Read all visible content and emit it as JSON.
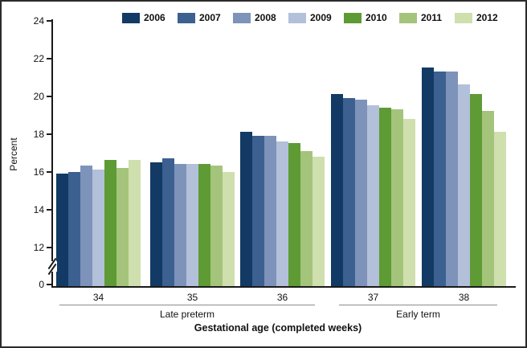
{
  "chart_data": {
    "type": "bar",
    "title": "",
    "ylabel": "Percent",
    "xlabel": "Gestational age (completed weeks)",
    "categories": [
      "34",
      "35",
      "36",
      "37",
      "38"
    ],
    "category_groups": [
      {
        "label": "Late preterm",
        "covers": [
          "34",
          "35",
          "36"
        ]
      },
      {
        "label": "Early term",
        "covers": [
          "37",
          "38"
        ]
      }
    ],
    "yticks": [
      "24",
      "22",
      "20",
      "18",
      "16",
      "14",
      "12",
      "0"
    ],
    "axis_break_between": [
      "0",
      "12"
    ],
    "ylim_display": [
      12,
      24
    ],
    "grid": false,
    "legend_position": "top",
    "series": [
      {
        "name": "2006",
        "color": "#123a64",
        "values": [
          15.9,
          16.5,
          18.1,
          20.1,
          21.5
        ]
      },
      {
        "name": "2007",
        "color": "#3c6090",
        "values": [
          16.0,
          16.7,
          17.9,
          19.9,
          21.3
        ]
      },
      {
        "name": "2008",
        "color": "#7e93ba",
        "values": [
          16.3,
          16.4,
          17.9,
          19.8,
          21.3
        ]
      },
      {
        "name": "2009",
        "color": "#b3c0da",
        "values": [
          16.1,
          16.4,
          17.6,
          19.5,
          20.6
        ]
      },
      {
        "name": "2010",
        "color": "#5e9b34",
        "values": [
          16.6,
          16.4,
          17.5,
          19.4,
          20.1
        ]
      },
      {
        "name": "2011",
        "color": "#a4c47c",
        "values": [
          16.2,
          16.3,
          17.1,
          19.3,
          19.2
        ]
      },
      {
        "name": "2012",
        "color": "#cfdfad",
        "values": [
          16.6,
          16.0,
          16.8,
          18.8,
          18.1
        ]
      }
    ],
    "frame_border_color": "#2b2b2b",
    "axis_color": "#1a1a1a",
    "bracket_line_color": "#8c8c8c",
    "background_color": "#ffffff"
  }
}
